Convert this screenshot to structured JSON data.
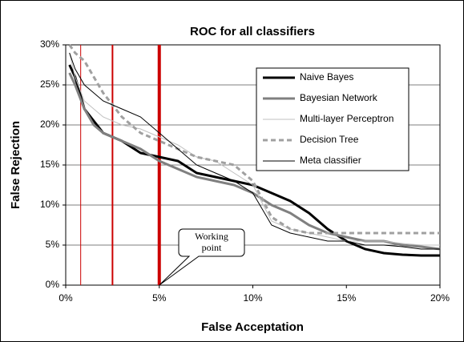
{
  "chart_data": {
    "type": "line",
    "title": "ROC for all classifiers",
    "x_label": "False Acceptation",
    "y_label": "False Rejection",
    "x": [
      0.2,
      0.5,
      1,
      1.5,
      2,
      3,
      4,
      5,
      6,
      7,
      8,
      9,
      10,
      11,
      12,
      13,
      14,
      15,
      16,
      17,
      18,
      19,
      20
    ],
    "series": [
      {
        "name": "Naive Bayes",
        "color": "#000000",
        "style": "thick",
        "values": [
          27.5,
          26,
          22,
          20.5,
          19,
          18,
          16.5,
          16,
          15.5,
          14,
          13.5,
          13,
          12.5,
          11.5,
          10.5,
          9,
          7,
          5.5,
          4.5,
          4,
          3.8,
          3.7,
          3.7
        ]
      },
      {
        "name": "Bayesian Network",
        "color": "#808080",
        "style": "thick",
        "values": [
          26.5,
          25,
          22,
          20,
          19,
          18,
          17,
          15.5,
          14.5,
          13.5,
          13,
          12.5,
          11.5,
          10,
          9,
          7.5,
          6.5,
          6,
          5.5,
          5.5,
          5,
          4.8,
          4.5
        ]
      },
      {
        "name": "Multi-layer Perceptron",
        "color": "#c0c0c0",
        "style": "thin",
        "values": [
          29,
          26,
          23,
          22,
          21,
          20,
          19.5,
          18.5,
          17.5,
          16,
          15.5,
          14,
          12.5,
          8,
          7,
          6.5,
          6,
          5.5,
          5.5,
          5.5,
          5.2,
          5,
          5
        ]
      },
      {
        "name": "Decision Tree",
        "color": "#a0a0a0",
        "style": "dashed",
        "values": [
          30,
          29,
          28,
          26,
          24,
          21,
          19,
          18,
          17,
          16,
          15.5,
          15,
          13,
          8.5,
          7,
          6.5,
          6.5,
          6.5,
          6.5,
          6.5,
          6.5,
          6.5,
          6.5
        ]
      },
      {
        "name": "Meta classifier",
        "color": "#000000",
        "style": "thin",
        "values": [
          29,
          27,
          25,
          24,
          23,
          22,
          21,
          19,
          17,
          15,
          14,
          13,
          11.5,
          7.5,
          6.5,
          6,
          5.5,
          5.5,
          5,
          5,
          4.8,
          4.5,
          4.5
        ]
      }
    ],
    "vlines": [
      0.8,
      2.5,
      5
    ],
    "vline_color": "#cc0000",
    "annotation": "Working point",
    "xlim": [
      0,
      20
    ],
    "xticks": [
      {
        "value": 0,
        "label": "0%"
      },
      {
        "value": 5,
        "label": "5%"
      },
      {
        "value": 10,
        "label": "10%"
      },
      {
        "value": 15,
        "label": "15%"
      },
      {
        "value": 20,
        "label": "20%"
      }
    ],
    "ylim": [
      0,
      30
    ],
    "yticks": [
      {
        "value": 0,
        "label": "0%"
      },
      {
        "value": 5,
        "label": "5%"
      },
      {
        "value": 10,
        "label": "10%"
      },
      {
        "value": 15,
        "label": "15%"
      },
      {
        "value": 20,
        "label": "20%"
      },
      {
        "value": 25,
        "label": "25%"
      },
      {
        "value": 30,
        "label": "30%"
      }
    ],
    "grid": true,
    "legend": "upper right"
  }
}
